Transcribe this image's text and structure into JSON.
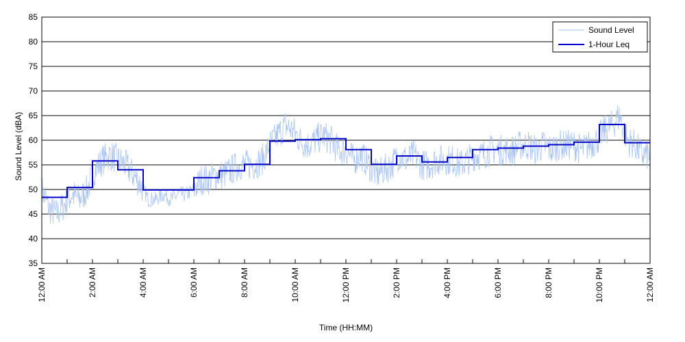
{
  "chart_data": {
    "type": "line",
    "xlabel": "Time (HH:MM)",
    "ylabel": "Sound Level (dBA)",
    "ylim": [
      35,
      85
    ],
    "yticks": [
      35,
      40,
      45,
      50,
      55,
      60,
      65,
      70,
      75,
      80,
      85
    ],
    "xlim": [
      0,
      24
    ],
    "xticks": [
      0,
      2,
      4,
      6,
      8,
      10,
      12,
      14,
      16,
      18,
      20,
      22,
      24
    ],
    "xtick_labels": [
      "12:00 AM",
      "2:00 AM",
      "4:00 AM",
      "6:00 AM",
      "8:00 AM",
      "10:00 AM",
      "12:00 PM",
      "2:00 PM",
      "4:00 PM",
      "6:00 PM",
      "8:00 PM",
      "10:00 PM",
      "12:00 AM"
    ],
    "grid": {
      "horizontal": true,
      "vertical": false,
      "hour_ticks": true
    },
    "legend": {
      "position": "top-right",
      "entries": [
        {
          "label": "Sound Level",
          "color": "#a9c4f2"
        },
        {
          "label": "1-Hour Leq",
          "color": "#0000c8"
        }
      ]
    },
    "series": [
      {
        "name": "1-Hour Leq",
        "color": "#0000c8",
        "style": "step",
        "hours": [
          0,
          1,
          2,
          3,
          4,
          5,
          6,
          7,
          8,
          9,
          10,
          11,
          12,
          13,
          14,
          15,
          16,
          17,
          18,
          19,
          20,
          21,
          22,
          23
        ],
        "values": [
          48.4,
          50.4,
          55.8,
          54.0,
          49.9,
          49.9,
          52.4,
          53.8,
          55.1,
          59.8,
          60.1,
          60.3,
          58.1,
          55.1,
          56.8,
          55.6,
          56.5,
          58.1,
          58.4,
          58.8,
          59.1,
          59.6,
          63.2,
          59.5
        ]
      },
      {
        "name": "Sound Level",
        "color": "#a9c4f2",
        "style": "noisy",
        "x": [
          0,
          0.3,
          0.6,
          0.9,
          1.2,
          1.5,
          1.8,
          2.1,
          2.4,
          2.7,
          3.0,
          3.3,
          3.6,
          3.9,
          4.2,
          4.5,
          4.8,
          5.1,
          5.4,
          5.7,
          6.0,
          6.3,
          6.6,
          6.9,
          7.2,
          7.5,
          7.8,
          8.1,
          8.4,
          8.7,
          9.0,
          9.3,
          9.6,
          9.9,
          10.2,
          10.5,
          10.8,
          11.1,
          11.4,
          11.7,
          12.0,
          12.3,
          12.6,
          12.9,
          13.2,
          13.5,
          13.8,
          14.1,
          14.4,
          14.7,
          15.0,
          15.3,
          15.6,
          15.9,
          16.2,
          16.5,
          16.8,
          17.1,
          17.4,
          17.7,
          18.0,
          18.3,
          18.6,
          18.9,
          19.2,
          19.5,
          19.8,
          20.1,
          20.4,
          20.7,
          21.0,
          21.3,
          21.6,
          21.9,
          22.2,
          22.5,
          22.8,
          23.1,
          23.4,
          23.7,
          24.0
        ],
        "values": [
          50,
          46,
          45,
          47,
          49,
          48,
          50,
          54,
          56,
          57,
          56,
          55,
          53,
          51,
          48,
          48,
          49,
          48,
          49,
          49,
          50,
          52,
          52,
          53,
          53,
          54,
          55,
          55,
          55,
          56,
          59,
          61,
          63,
          62,
          60,
          59,
          60,
          61,
          60,
          58,
          58,
          56,
          57,
          55,
          53,
          54,
          55,
          57,
          56,
          57,
          55,
          55,
          56,
          56,
          56,
          55,
          56,
          57,
          57,
          58,
          58,
          58,
          58,
          59,
          59,
          58,
          59,
          58,
          59,
          59,
          59,
          58,
          59,
          60,
          62,
          63,
          65,
          60,
          59,
          57,
          57
        ]
      }
    ]
  }
}
